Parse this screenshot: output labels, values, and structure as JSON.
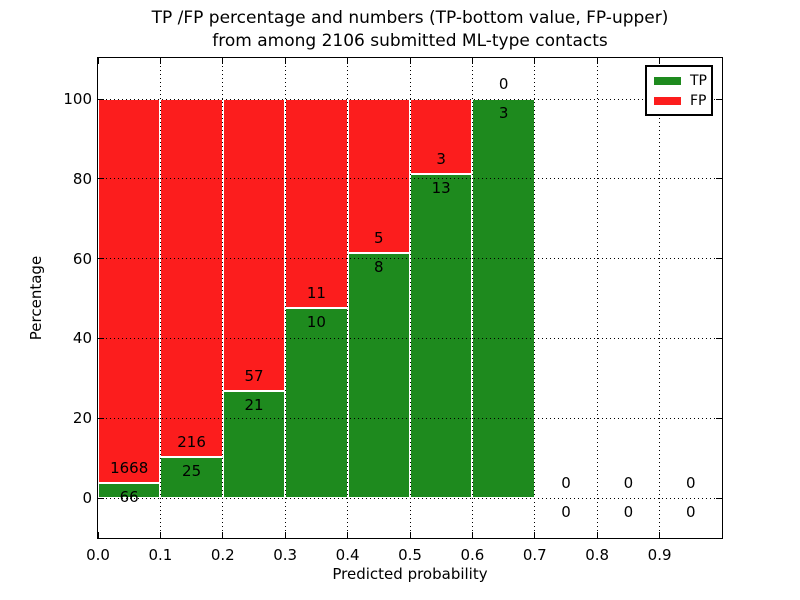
{
  "figure": {
    "background": "#ffffff",
    "title_line1": "TP /FP percentage and numbers (TP-bottom value, FP-upper)",
    "title_line2": "from among 2106 submitted ML-type contacts"
  },
  "chart_data": {
    "type": "bar",
    "subtype": "stacked-percentage-histogram",
    "title": "TP /FP percentage and numbers (TP-bottom value, FP-upper) from among 2106 submitted ML-type contacts",
    "title_line1": "TP /FP percentage and numbers (TP-bottom value, FP-upper)",
    "title_line2": "from among 2106 submitted ML-type contacts",
    "xlabel": "Predicted probability",
    "ylabel": "Percentage",
    "total_contacts": 2106,
    "xlim": [
      0.0,
      1.0
    ],
    "ylim": [
      -10,
      110.3
    ],
    "grid": true,
    "x_tick_labels": [
      "0.0",
      "0.1",
      "0.2",
      "0.3",
      "0.4",
      "0.5",
      "0.6",
      "0.7",
      "0.8",
      "0.9"
    ],
    "y_ticks": [
      0,
      20,
      40,
      60,
      80,
      100
    ],
    "legend": [
      {
        "label": "TP",
        "color": "#1e8a1e"
      },
      {
        "label": "FP",
        "color": "#fc1d1d"
      }
    ],
    "legend_position": "upper right",
    "series_note": "Each bin stacked to 100%; green = TP share, red = FP share; labels show raw counts (TP below boundary, FP above boundary)",
    "bins": [
      {
        "range": "0.0-0.1",
        "tp": 66,
        "fp": 1668
      },
      {
        "range": "0.1-0.2",
        "tp": 25,
        "fp": 216
      },
      {
        "range": "0.2-0.3",
        "tp": 21,
        "fp": 57
      },
      {
        "range": "0.3-0.4",
        "tp": 10,
        "fp": 11
      },
      {
        "range": "0.4-0.5",
        "tp": 8,
        "fp": 5
      },
      {
        "range": "0.5-0.6",
        "tp": 13,
        "fp": 3
      },
      {
        "range": "0.6-0.7",
        "tp": 3,
        "fp": 0
      },
      {
        "range": "0.7-0.8",
        "tp": 0,
        "fp": 0
      },
      {
        "range": "0.8-0.9",
        "tp": 0,
        "fp": 0
      },
      {
        "range": "0.9-1.0",
        "tp": 0,
        "fp": 0
      }
    ],
    "colors": {
      "tp": "#1e8a1e",
      "fp": "#fc1d1d",
      "grid": "#000000",
      "text": "#000000",
      "bar_edge": "#ffffff",
      "spine": "#000000"
    }
  }
}
